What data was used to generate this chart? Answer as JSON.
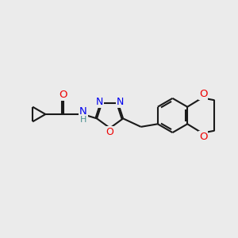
{
  "background_color": "#ebebeb",
  "bond_color": "#1a1a1a",
  "atom_colors": {
    "N": "#0000ee",
    "O": "#ee0000",
    "C": "#1a1a1a",
    "H": "#4a9090"
  },
  "dpi": 100,
  "figsize": [
    3.0,
    3.0
  ]
}
